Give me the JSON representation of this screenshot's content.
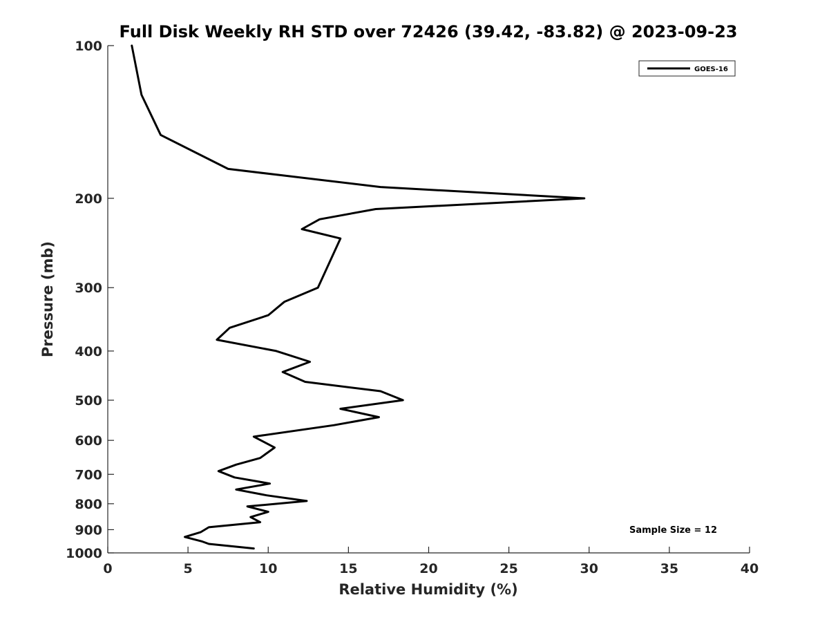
{
  "chart_data": {
    "type": "line",
    "title": "Full Disk Weekly RH STD over 72426 (39.42, -83.82) @ 2023-09-23",
    "xlabel": "Relative Humidity (%)",
    "ylabel": "Pressure (mb)",
    "xlim": [
      0,
      40
    ],
    "ylim": [
      1000,
      100
    ],
    "y_scale": "log",
    "x_ticks": [
      0,
      5,
      10,
      15,
      20,
      25,
      30,
      35,
      40
    ],
    "x_tick_labels": [
      "0",
      "5",
      "10",
      "15",
      "20",
      "25",
      "30",
      "35",
      "40"
    ],
    "y_ticks": [
      100,
      200,
      300,
      400,
      500,
      600,
      700,
      800,
      900,
      1000
    ],
    "y_tick_labels": [
      "100",
      "200",
      "300",
      "400",
      "500",
      "600",
      "700",
      "800",
      "900",
      "1000"
    ],
    "grid": false,
    "legend_position": "top-right",
    "series": [
      {
        "name": "GOES-16",
        "color": "#000000",
        "points": [
          [
            1.5,
            100
          ],
          [
            2.1,
            125
          ],
          [
            3.3,
            150
          ],
          [
            7.5,
            175
          ],
          [
            17.0,
            190
          ],
          [
            29.7,
            200
          ],
          [
            16.7,
            210
          ],
          [
            13.2,
            220
          ],
          [
            12.1,
            230
          ],
          [
            14.5,
            240
          ],
          [
            13.1,
            300
          ],
          [
            11.0,
            320
          ],
          [
            10.0,
            340
          ],
          [
            7.6,
            360
          ],
          [
            6.8,
            380
          ],
          [
            10.5,
            400
          ],
          [
            12.6,
            420
          ],
          [
            10.9,
            440
          ],
          [
            12.3,
            460
          ],
          [
            17.0,
            480
          ],
          [
            18.4,
            500
          ],
          [
            14.5,
            520
          ],
          [
            16.9,
            540
          ],
          [
            14.1,
            560
          ],
          [
            9.1,
            590
          ],
          [
            10.4,
            620
          ],
          [
            9.5,
            650
          ],
          [
            8.0,
            670
          ],
          [
            6.9,
            690
          ],
          [
            7.9,
            710
          ],
          [
            10.1,
            730
          ],
          [
            8.0,
            750
          ],
          [
            9.9,
            770
          ],
          [
            12.4,
            790
          ],
          [
            8.7,
            810
          ],
          [
            10.0,
            830
          ],
          [
            8.9,
            850
          ],
          [
            9.5,
            870
          ],
          [
            6.3,
            890
          ],
          [
            5.8,
            910
          ],
          [
            4.8,
            930
          ],
          [
            5.9,
            950
          ],
          [
            6.3,
            960
          ],
          [
            9.1,
            980
          ]
        ]
      }
    ],
    "annotations": [
      {
        "text": "Sample Size = 12"
      }
    ]
  }
}
